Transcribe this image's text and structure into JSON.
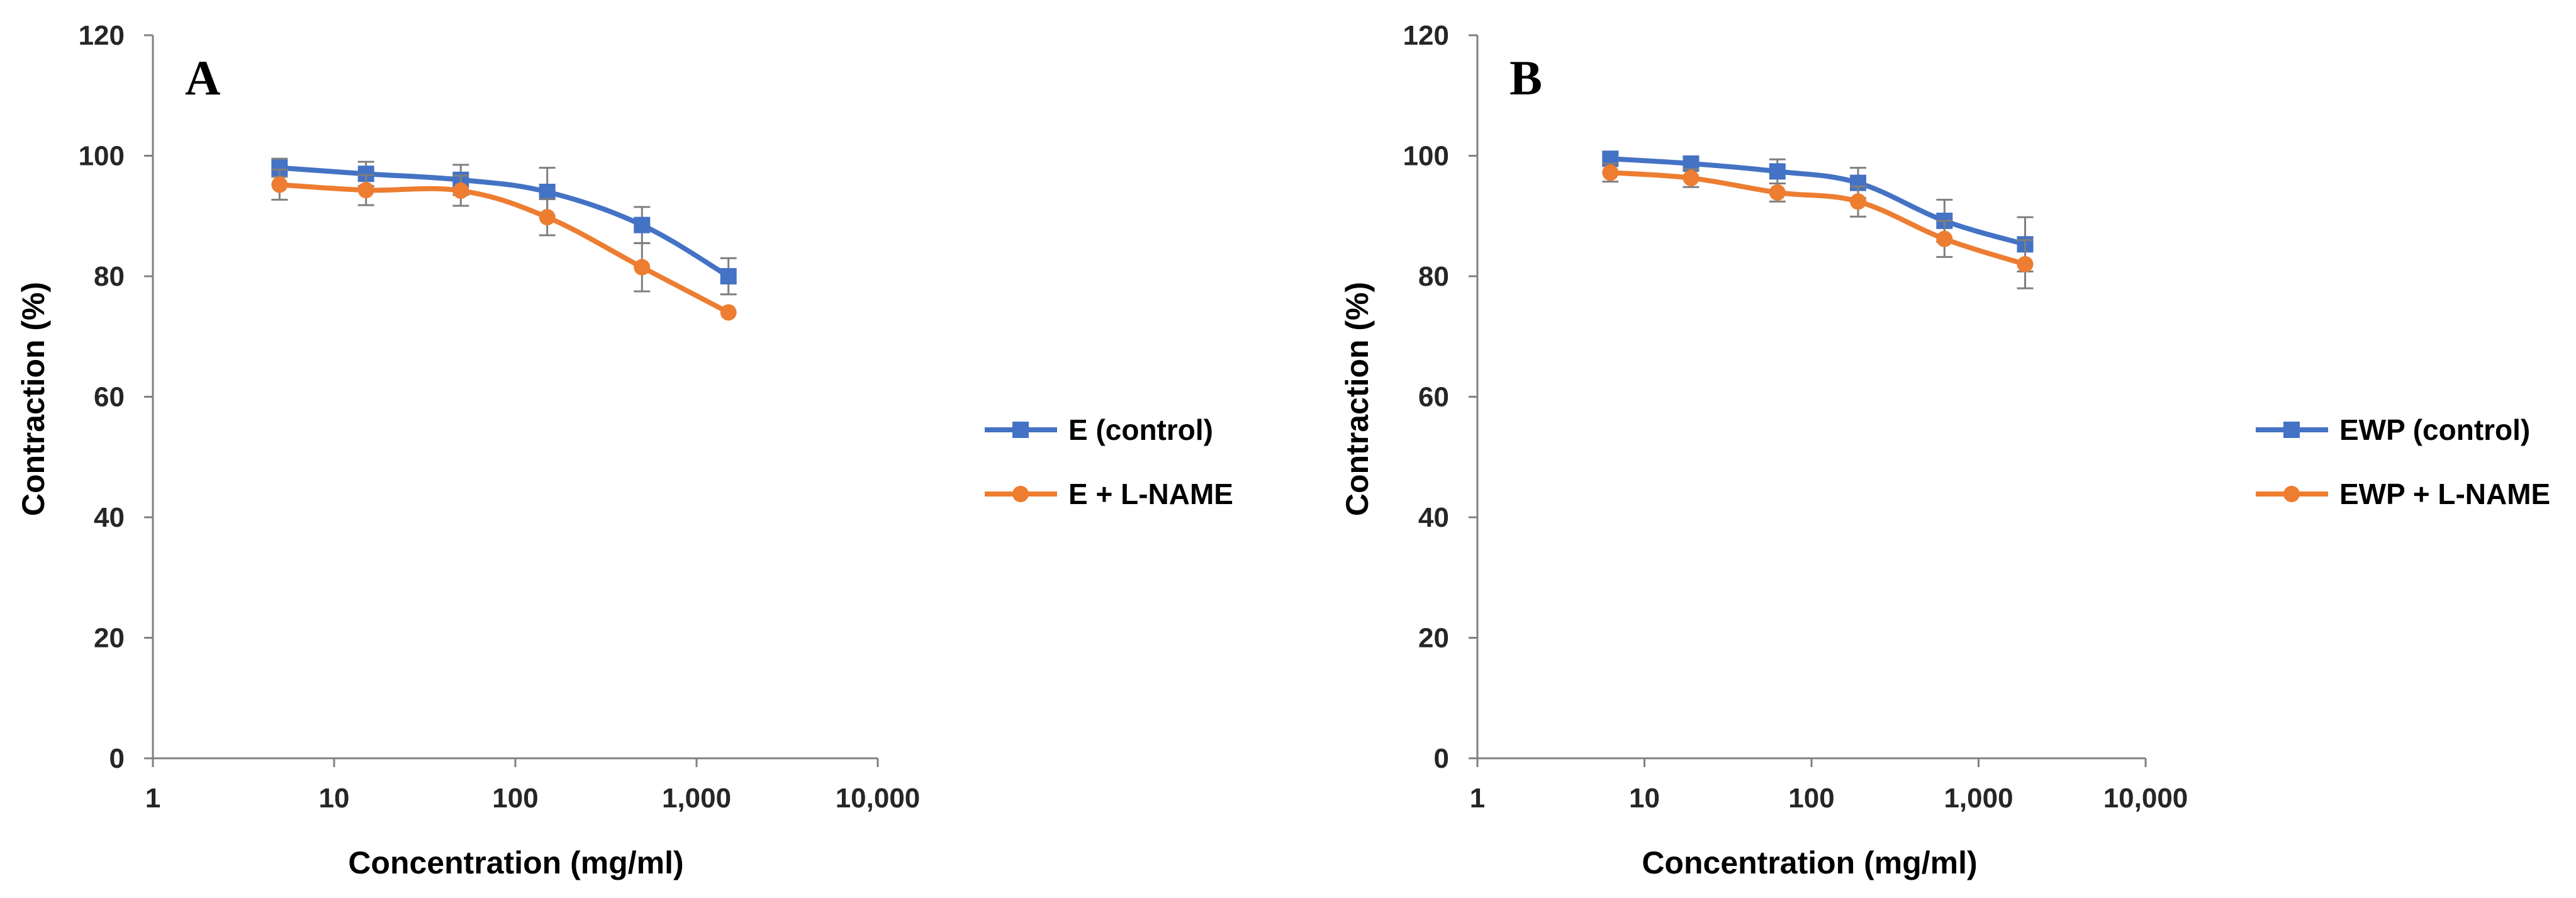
{
  "colors": {
    "control": "#4472C4",
    "lname": "#ED7D31",
    "axis": "#808080",
    "error": "#7F7F7F"
  },
  "chart_data": [
    {
      "type": "line",
      "panel": "A",
      "xscale": "log",
      "xlim": [
        1,
        10000
      ],
      "ylim": [
        0,
        120
      ],
      "xticks": [
        1,
        10,
        100,
        1000,
        10000
      ],
      "xtick_labels": [
        "1",
        "10",
        "100",
        "1,000",
        "10,000"
      ],
      "yticks": [
        0,
        20,
        40,
        60,
        80,
        100,
        120
      ],
      "ytick_labels": [
        "0",
        "20",
        "40",
        "60",
        "80",
        "100",
        "120"
      ],
      "xlabel": "Concentration (mg/ml)",
      "ylabel": "Contraction (%)",
      "legend_position": "right",
      "series": [
        {
          "name": "E (control)",
          "marker": "square",
          "color": "#4472C4",
          "x": [
            5,
            15,
            50,
            150,
            500,
            1500
          ],
          "y": [
            98,
            97,
            96,
            94,
            88.5,
            80
          ],
          "err": [
            1.5,
            2,
            2.5,
            4,
            3,
            3
          ]
        },
        {
          "name": "E + L-NAME",
          "marker": "circle",
          "color": "#ED7D31",
          "x": [
            5,
            15,
            50,
            150,
            500,
            1500
          ],
          "y": [
            95.2,
            94.3,
            94.2,
            89.8,
            81.5,
            74
          ],
          "err": [
            2.5,
            2.5,
            2.5,
            3,
            4,
            0
          ]
        }
      ]
    },
    {
      "type": "line",
      "panel": "B",
      "xscale": "log",
      "xlim": [
        1,
        10000
      ],
      "ylim": [
        0,
        120
      ],
      "xticks": [
        1,
        10,
        100,
        1000,
        10000
      ],
      "xtick_labels": [
        "1",
        "10",
        "100",
        "1,000",
        "10,000"
      ],
      "yticks": [
        0,
        20,
        40,
        60,
        80,
        100,
        120
      ],
      "ytick_labels": [
        "0",
        "20",
        "40",
        "60",
        "80",
        "100",
        "120"
      ],
      "xlabel": "Concentration (mg/ml)",
      "ylabel": "Contraction (%)",
      "legend_position": "right",
      "series": [
        {
          "name": "EWP (control)",
          "marker": "square",
          "color": "#4472C4",
          "x": [
            6.25,
            19,
            62.5,
            190,
            625,
            1900
          ],
          "y": [
            99.5,
            98.7,
            97.4,
            95.5,
            89.2,
            85.3
          ],
          "err": [
            1,
            1,
            2,
            2.5,
            3.5,
            4.5
          ]
        },
        {
          "name": "EWP + L-NAME",
          "marker": "circle",
          "color": "#ED7D31",
          "x": [
            6.25,
            19,
            62.5,
            190,
            625,
            1900
          ],
          "y": [
            97.2,
            96.3,
            93.9,
            92.4,
            86.2,
            82
          ],
          "err": [
            1.5,
            1.5,
            1.5,
            2.5,
            3,
            4
          ]
        }
      ]
    }
  ]
}
